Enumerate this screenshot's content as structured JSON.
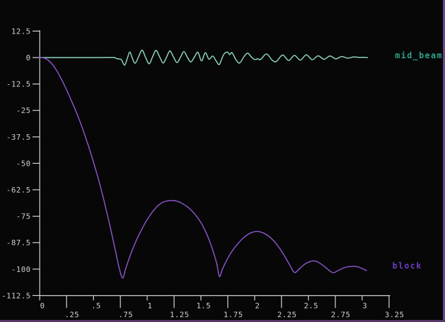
{
  "window": {
    "legend_mid_beam": "mid_beam",
    "legend_block": "block"
  },
  "colors": {
    "background": "#070707",
    "axis": "#d8d8d8",
    "tick_label": "#cfcfcf",
    "mid_beam_line": "#8fd8c3",
    "mid_beam_label": "#2fa38c",
    "block_line": "#8a55cc",
    "block_label": "#6a3ec2",
    "frame_border": "#6f4590",
    "frame_border_bottom": "#593667"
  },
  "chart_data": {
    "type": "line",
    "title": "",
    "xlabel": "",
    "ylabel": "",
    "xlim": [
      0,
      3.25
    ],
    "ylim": [
      -112.5,
      12.5
    ],
    "grid": false,
    "legend_position": "right-of-curve-endpoints",
    "y_ticks": {
      "values": [
        12.5,
        0,
        -12.5,
        -25,
        -37.5,
        -50,
        -62.5,
        -75,
        -87.5,
        -100,
        -112.5
      ],
      "labels": [
        "12.5",
        "0",
        "-12.5",
        "-25",
        "-37.5",
        "-50",
        "-62.5",
        "-75",
        "-87.5",
        "-100",
        "-112.5"
      ]
    },
    "x_ticks_row1": {
      "values": [
        0,
        0.5,
        1,
        1.5,
        2,
        2.5,
        3
      ],
      "labels": [
        "0",
        ".5",
        "1",
        "1.5",
        "2",
        "2.5",
        "3"
      ]
    },
    "x_ticks_row2": {
      "values": [
        0.25,
        0.75,
        1.25,
        1.75,
        2.25,
        2.75,
        3.25
      ],
      "labels": [
        ".25",
        ".75",
        "1.25",
        "1.75",
        "2.25",
        "2.75",
        "3.25"
      ]
    },
    "series": [
      {
        "name": "mid_beam",
        "color": "#8fd8c3",
        "points": [
          [
            0.0,
            0
          ],
          [
            0.3,
            0
          ],
          [
            0.55,
            0
          ],
          [
            0.69,
            0
          ],
          [
            0.715,
            -0.5
          ],
          [
            0.74,
            -0.7
          ],
          [
            0.762,
            -1.1
          ],
          [
            0.79,
            -3.6
          ],
          [
            0.815,
            -0.4
          ],
          [
            0.838,
            2.6
          ],
          [
            0.862,
            -0.3
          ],
          [
            0.888,
            -2.7
          ],
          [
            0.92,
            0.4
          ],
          [
            0.952,
            3.5
          ],
          [
            0.985,
            0.1
          ],
          [
            1.018,
            -2.9
          ],
          [
            1.05,
            0.3
          ],
          [
            1.082,
            3.4
          ],
          [
            1.115,
            0.4
          ],
          [
            1.148,
            -2.6
          ],
          [
            1.18,
            0.2
          ],
          [
            1.212,
            3.1
          ],
          [
            1.245,
            0.2
          ],
          [
            1.278,
            -2.4
          ],
          [
            1.31,
            0.2
          ],
          [
            1.342,
            2.8
          ],
          [
            1.374,
            0.1
          ],
          [
            1.406,
            -2.1
          ],
          [
            1.44,
            0.3
          ],
          [
            1.472,
            2.5
          ],
          [
            1.506,
            -1.6
          ],
          [
            1.54,
            2.3
          ],
          [
            1.575,
            -0.8
          ],
          [
            1.61,
            0.7
          ],
          [
            1.645,
            -1.9
          ],
          [
            1.672,
            -3.2
          ],
          [
            1.71,
            1.3
          ],
          [
            1.745,
            2.6
          ],
          [
            1.768,
            1.4
          ],
          [
            1.79,
            2.3
          ],
          [
            1.825,
            -1.0
          ],
          [
            1.86,
            -2.6
          ],
          [
            1.9,
            0.4
          ],
          [
            1.935,
            2.1
          ],
          [
            1.968,
            0.3
          ],
          [
            2.0,
            -0.9
          ],
          [
            2.03,
            -0.6
          ],
          [
            2.055,
            -0.9
          ],
          [
            2.11,
            1.7
          ],
          [
            2.16,
            -1.1
          ],
          [
            2.2,
            -1.9
          ],
          [
            2.26,
            1.2
          ],
          [
            2.315,
            -1.4
          ],
          [
            2.37,
            1.0
          ],
          [
            2.425,
            -1.2
          ],
          [
            2.48,
            1.3
          ],
          [
            2.535,
            -1.0
          ],
          [
            2.59,
            0.8
          ],
          [
            2.645,
            -0.8
          ],
          [
            2.7,
            0.7
          ],
          [
            2.755,
            -0.6
          ],
          [
            2.81,
            0.5
          ],
          [
            2.865,
            -0.3
          ],
          [
            2.92,
            0.3
          ],
          [
            2.97,
            0.1
          ],
          [
            3.02,
            0.1
          ],
          [
            3.05,
            0
          ]
        ]
      },
      {
        "name": "block",
        "color": "#8a55cc",
        "points": [
          [
            0.0,
            0
          ],
          [
            0.03,
            -0.1
          ],
          [
            0.06,
            -0.6
          ],
          [
            0.1,
            -2.2
          ],
          [
            0.15,
            -5.5
          ],
          [
            0.2,
            -10
          ],
          [
            0.25,
            -15.3
          ],
          [
            0.3,
            -21
          ],
          [
            0.35,
            -27
          ],
          [
            0.4,
            -33.8
          ],
          [
            0.45,
            -41.3
          ],
          [
            0.5,
            -49.4
          ],
          [
            0.55,
            -58.2
          ],
          [
            0.6,
            -68
          ],
          [
            0.65,
            -78.8
          ],
          [
            0.7,
            -90.3
          ],
          [
            0.74,
            -99.6
          ],
          [
            0.772,
            -104.2
          ],
          [
            0.8,
            -99.8
          ],
          [
            0.84,
            -93.8
          ],
          [
            0.88,
            -88.6
          ],
          [
            0.92,
            -84.2
          ],
          [
            0.96,
            -80.2
          ],
          [
            1.0,
            -76.6
          ],
          [
            1.05,
            -72.9
          ],
          [
            1.1,
            -70
          ],
          [
            1.15,
            -68.3
          ],
          [
            1.21,
            -67.6
          ],
          [
            1.27,
            -67.8
          ],
          [
            1.32,
            -68.8
          ],
          [
            1.38,
            -70.8
          ],
          [
            1.44,
            -73.8
          ],
          [
            1.5,
            -78
          ],
          [
            1.55,
            -83
          ],
          [
            1.6,
            -89.5
          ],
          [
            1.645,
            -97
          ],
          [
            1.672,
            -103.5
          ],
          [
            1.7,
            -100
          ],
          [
            1.745,
            -95.3
          ],
          [
            1.79,
            -91.5
          ],
          [
            1.84,
            -88.2
          ],
          [
            1.89,
            -85.5
          ],
          [
            1.94,
            -83.5
          ],
          [
            1.99,
            -82.4
          ],
          [
            2.03,
            -82.2
          ],
          [
            2.08,
            -82.9
          ],
          [
            2.13,
            -84.4
          ],
          [
            2.18,
            -86.8
          ],
          [
            2.23,
            -90
          ],
          [
            2.28,
            -94
          ],
          [
            2.33,
            -98.4
          ],
          [
            2.37,
            -101.6
          ],
          [
            2.41,
            -100.2
          ],
          [
            2.46,
            -97.9
          ],
          [
            2.51,
            -96.5
          ],
          [
            2.555,
            -96.1
          ],
          [
            2.6,
            -97
          ],
          [
            2.65,
            -98.8
          ],
          [
            2.7,
            -100.9
          ],
          [
            2.735,
            -101.7
          ],
          [
            2.78,
            -100.6
          ],
          [
            2.83,
            -99.4
          ],
          [
            2.88,
            -98.8
          ],
          [
            2.94,
            -98.7
          ],
          [
            2.99,
            -99.5
          ],
          [
            3.04,
            -100.7
          ]
        ]
      }
    ]
  }
}
